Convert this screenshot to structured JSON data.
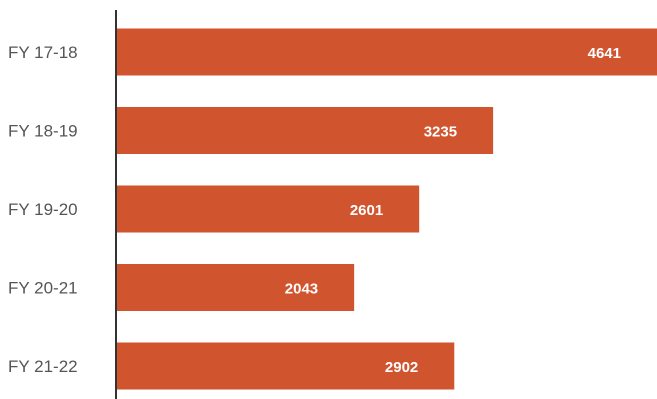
{
  "chart_data": {
    "type": "bar",
    "orientation": "horizontal",
    "categories": [
      "FY 17-18",
      "FY 18-19",
      "FY 19-20",
      "FY 20-21",
      "FY 21-22"
    ],
    "values": [
      4641,
      3235,
      2601,
      2043,
      2902
    ],
    "data_labels": [
      "4641",
      "3235",
      "2601",
      "2043",
      "2902"
    ],
    "title": "",
    "xlabel": "",
    "ylabel": "",
    "xlim": [
      0,
      4641
    ],
    "grid": false,
    "legend": "none",
    "bar_color": "#d0552f",
    "axis_color": "#333333",
    "label_color": "#555555",
    "value_label_color": "#ffffff"
  }
}
